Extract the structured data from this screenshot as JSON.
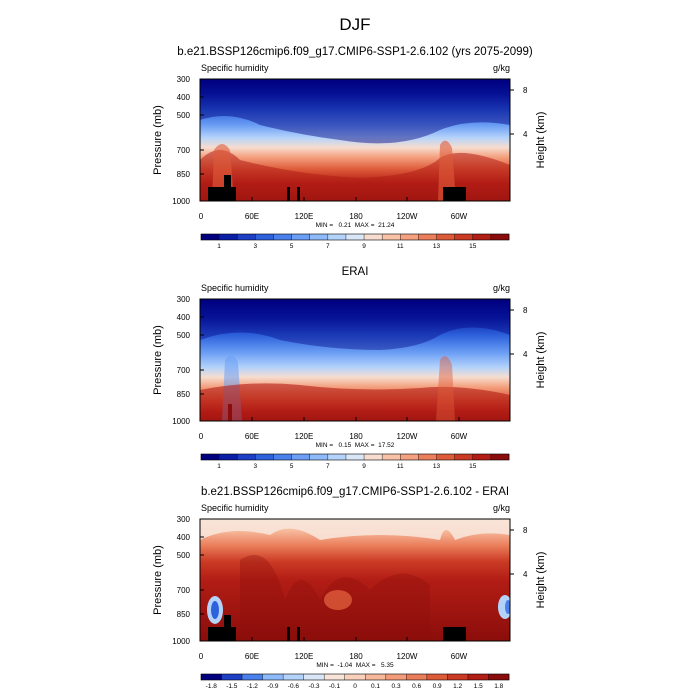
{
  "figure": {
    "title": "DJF"
  },
  "colorbar_abs": {
    "colors": [
      "#00007f",
      "#0b1ea6",
      "#1c3fc4",
      "#2e62dc",
      "#4a80eb",
      "#6b9ef4",
      "#8fbaf9",
      "#b4d3fb",
      "#d8e6f8",
      "#f6ddd0",
      "#f8c2a8",
      "#f4a17f",
      "#ec7f5b",
      "#de5b3a",
      "#cb3a24",
      "#b21d15",
      "#8b0d0b"
    ],
    "labels": [
      "1",
      "3",
      "5",
      "7",
      "9",
      "11",
      "13",
      "15"
    ]
  },
  "colorbar_diff": {
    "colors": [
      "#00007f",
      "#1c3fc4",
      "#4a80eb",
      "#8fbaf9",
      "#b4d3fb",
      "#d8e6f8",
      "#f8e4d8",
      "#f8d0bc",
      "#f6b89a",
      "#f29c7a",
      "#ea7d5a",
      "#de5b3a",
      "#cb3a24",
      "#b21d15",
      "#8b0d0b"
    ],
    "labels": [
      "-1.8",
      "-1.5",
      "-1.2",
      "-0.9",
      "-0.6",
      "-0.3",
      "-0.1",
      "0",
      "0.1",
      "0.3",
      "0.6",
      "0.9",
      "1.2",
      "1.5",
      "1.8"
    ]
  },
  "chart_data": [
    {
      "type": "heatmap",
      "title": "b.e21.BSSP126cmip6.f09_g17.CMIP6-SSP1-2.6.102 (yrs 2075-2099)",
      "variable_label": "Specific humidity",
      "units": "g/kg",
      "ylabel": "Pressure (mb)",
      "ylabel_right": "Height (km)",
      "yticks": [
        "300",
        "400",
        "500",
        "700",
        "850",
        "1000"
      ],
      "yticks_right": [
        "8",
        "4"
      ],
      "xticks": [
        "0",
        "60E",
        "120E",
        "180",
        "120W",
        "60W"
      ],
      "min": 0.21,
      "max": 21.24,
      "stats_text": "MIN =   0.21  MAX =  21.24"
    },
    {
      "type": "heatmap",
      "title": "ERAI",
      "variable_label": "Specific humidity",
      "units": "g/kg",
      "ylabel": "Pressure (mb)",
      "ylabel_right": "Height (km)",
      "yticks": [
        "300",
        "400",
        "500",
        "700",
        "850",
        "1000"
      ],
      "yticks_right": [
        "8",
        "4"
      ],
      "xticks": [
        "0",
        "60E",
        "120E",
        "180",
        "120W",
        "60W"
      ],
      "min": 0.15,
      "max": 17.52,
      "stats_text": "MIN =   0.15  MAX =  17.52"
    },
    {
      "type": "heatmap",
      "title": "b.e21.BSSP126cmip6.f09_g17.CMIP6-SSP1-2.6.102 - ERAI",
      "variable_label": "Specific humidity",
      "units": "g/kg",
      "ylabel": "Pressure (mb)",
      "ylabel_right": "Height (km)",
      "yticks": [
        "300",
        "400",
        "500",
        "700",
        "850",
        "1000"
      ],
      "yticks_right": [
        "8",
        "4"
      ],
      "xticks": [
        "0",
        "60E",
        "120E",
        "180",
        "120W",
        "60W"
      ],
      "min": -1.04,
      "max": 5.35,
      "stats_text": "MIN =  -1.04  MAX =   5.35"
    }
  ]
}
